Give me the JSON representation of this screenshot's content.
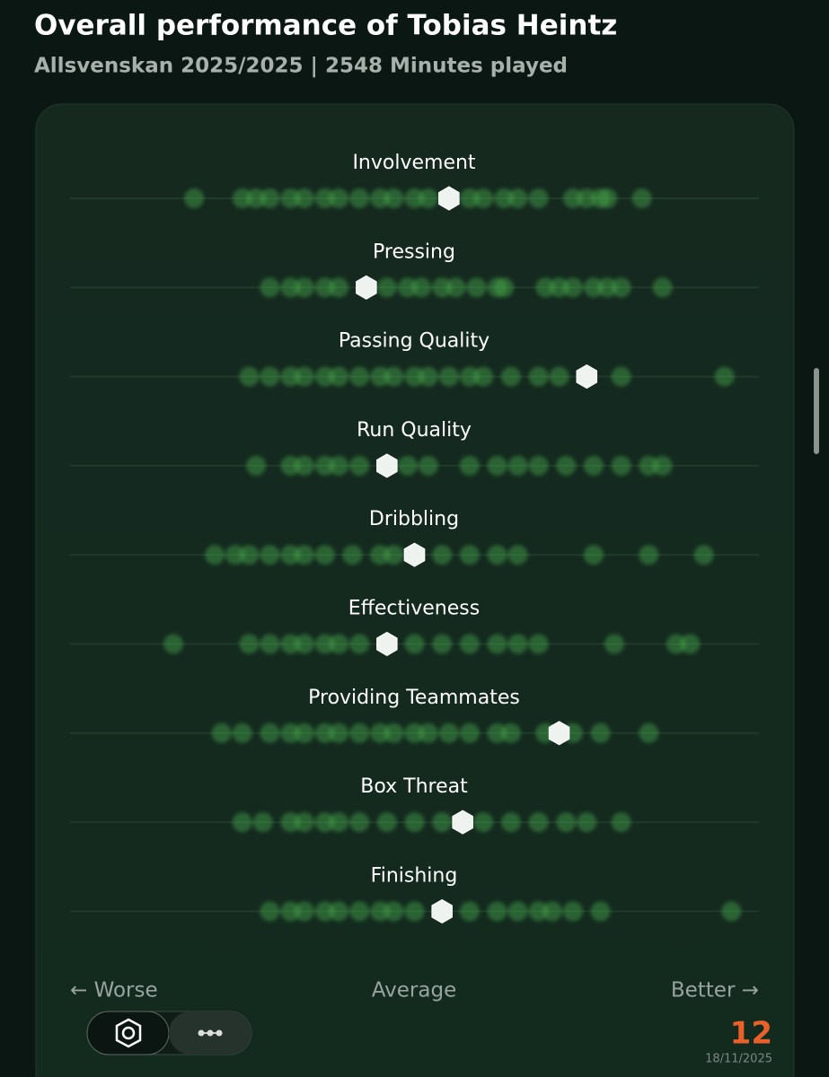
{
  "chart_data": {
    "type": "strip",
    "title": "Overall performance of Tobias Heintz",
    "subtitle": "Allsvenskan 2025/2025 | 2548 Minutes played",
    "categories": [
      "Involvement",
      "Pressing",
      "Passing Quality",
      "Run Quality",
      "Dribbling",
      "Effectiveness",
      "Providing Teammates",
      "Box Threat",
      "Finishing"
    ],
    "values": [
      55,
      43,
      75,
      46,
      50,
      46,
      71,
      57,
      54
    ],
    "others": [
      [
        18,
        25,
        27,
        29,
        32,
        34,
        37,
        39,
        42,
        45,
        47,
        50,
        52,
        58,
        60,
        63,
        65,
        68,
        73,
        75,
        77,
        78,
        83
      ],
      [
        29,
        32,
        34,
        37,
        39,
        46,
        49,
        51,
        54,
        56,
        59,
        62,
        63,
        69,
        71,
        73,
        76,
        78,
        80,
        86
      ],
      [
        26,
        29,
        32,
        34,
        37,
        39,
        42,
        45,
        47,
        50,
        52,
        55,
        58,
        60,
        64,
        68,
        71,
        80,
        95
      ],
      [
        27,
        32,
        34,
        37,
        39,
        42,
        49,
        52,
        58,
        62,
        65,
        68,
        72,
        76,
        80,
        84,
        86
      ],
      [
        21,
        24,
        26,
        29,
        32,
        34,
        37,
        41,
        45,
        47,
        54,
        58,
        62,
        65,
        76,
        84,
        92
      ],
      [
        15,
        26,
        29,
        32,
        34,
        37,
        39,
        42,
        50,
        54,
        58,
        62,
        65,
        68,
        79,
        88,
        90
      ],
      [
        22,
        25,
        29,
        32,
        34,
        37,
        39,
        42,
        45,
        47,
        50,
        52,
        55,
        58,
        62,
        64,
        69,
        73,
        77,
        84
      ],
      [
        25,
        28,
        32,
        34,
        37,
        39,
        42,
        46,
        50,
        54,
        60,
        64,
        68,
        72,
        75,
        80
      ],
      [
        29,
        32,
        34,
        37,
        39,
        42,
        45,
        47,
        50,
        58,
        62,
        65,
        68,
        70,
        73,
        77,
        96
      ]
    ],
    "color": "#46a84c",
    "player_color": "#eef3ef",
    "xlim": [
      0,
      100
    ],
    "x_labels": [
      "← Worse",
      "Average",
      "Better →"
    ],
    "logo": "12",
    "date": "18/11/2025"
  }
}
